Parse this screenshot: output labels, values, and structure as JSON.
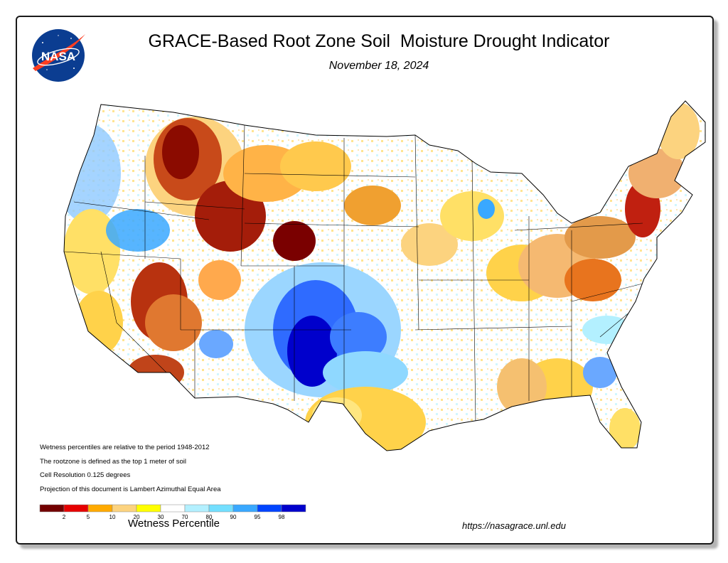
{
  "header": {
    "logo_text": "NASA",
    "title": "GRACE-Based Root Zone Soil  Moisture Drought Indicator",
    "date": "November 18, 2024"
  },
  "notes": [
    "Wetness percentiles are relative to the period 1948-2012",
    "The rootzone is defined as the top 1 meter of soil",
    "Cell Resolution 0.125 degrees",
    "Projection of this document is Lambert Azimuthal Equal Area"
  ],
  "legend": {
    "label": "Wetness Percentile",
    "bins": [
      {
        "color": "#730000",
        "tick": "2"
      },
      {
        "color": "#e60000",
        "tick": "5"
      },
      {
        "color": "#ffaa00",
        "tick": "10"
      },
      {
        "color": "#fcd37f",
        "tick": "20"
      },
      {
        "color": "#ffff00",
        "tick": "30"
      },
      {
        "color": "#ffffff",
        "tick": "70"
      },
      {
        "color": "#b3f0ff",
        "tick": "80"
      },
      {
        "color": "#73dfff",
        "tick": "90"
      },
      {
        "color": "#39a8ff",
        "tick": "95"
      },
      {
        "color": "#0044ff",
        "tick": "98"
      },
      {
        "color": "#0000cc",
        "tick": ""
      }
    ]
  },
  "url": "https://nasagrace.unl.edu",
  "colors": {
    "nasa_blue": "#0b3d91",
    "nasa_red": "#fc3d21",
    "border": "#1a1a1a"
  }
}
